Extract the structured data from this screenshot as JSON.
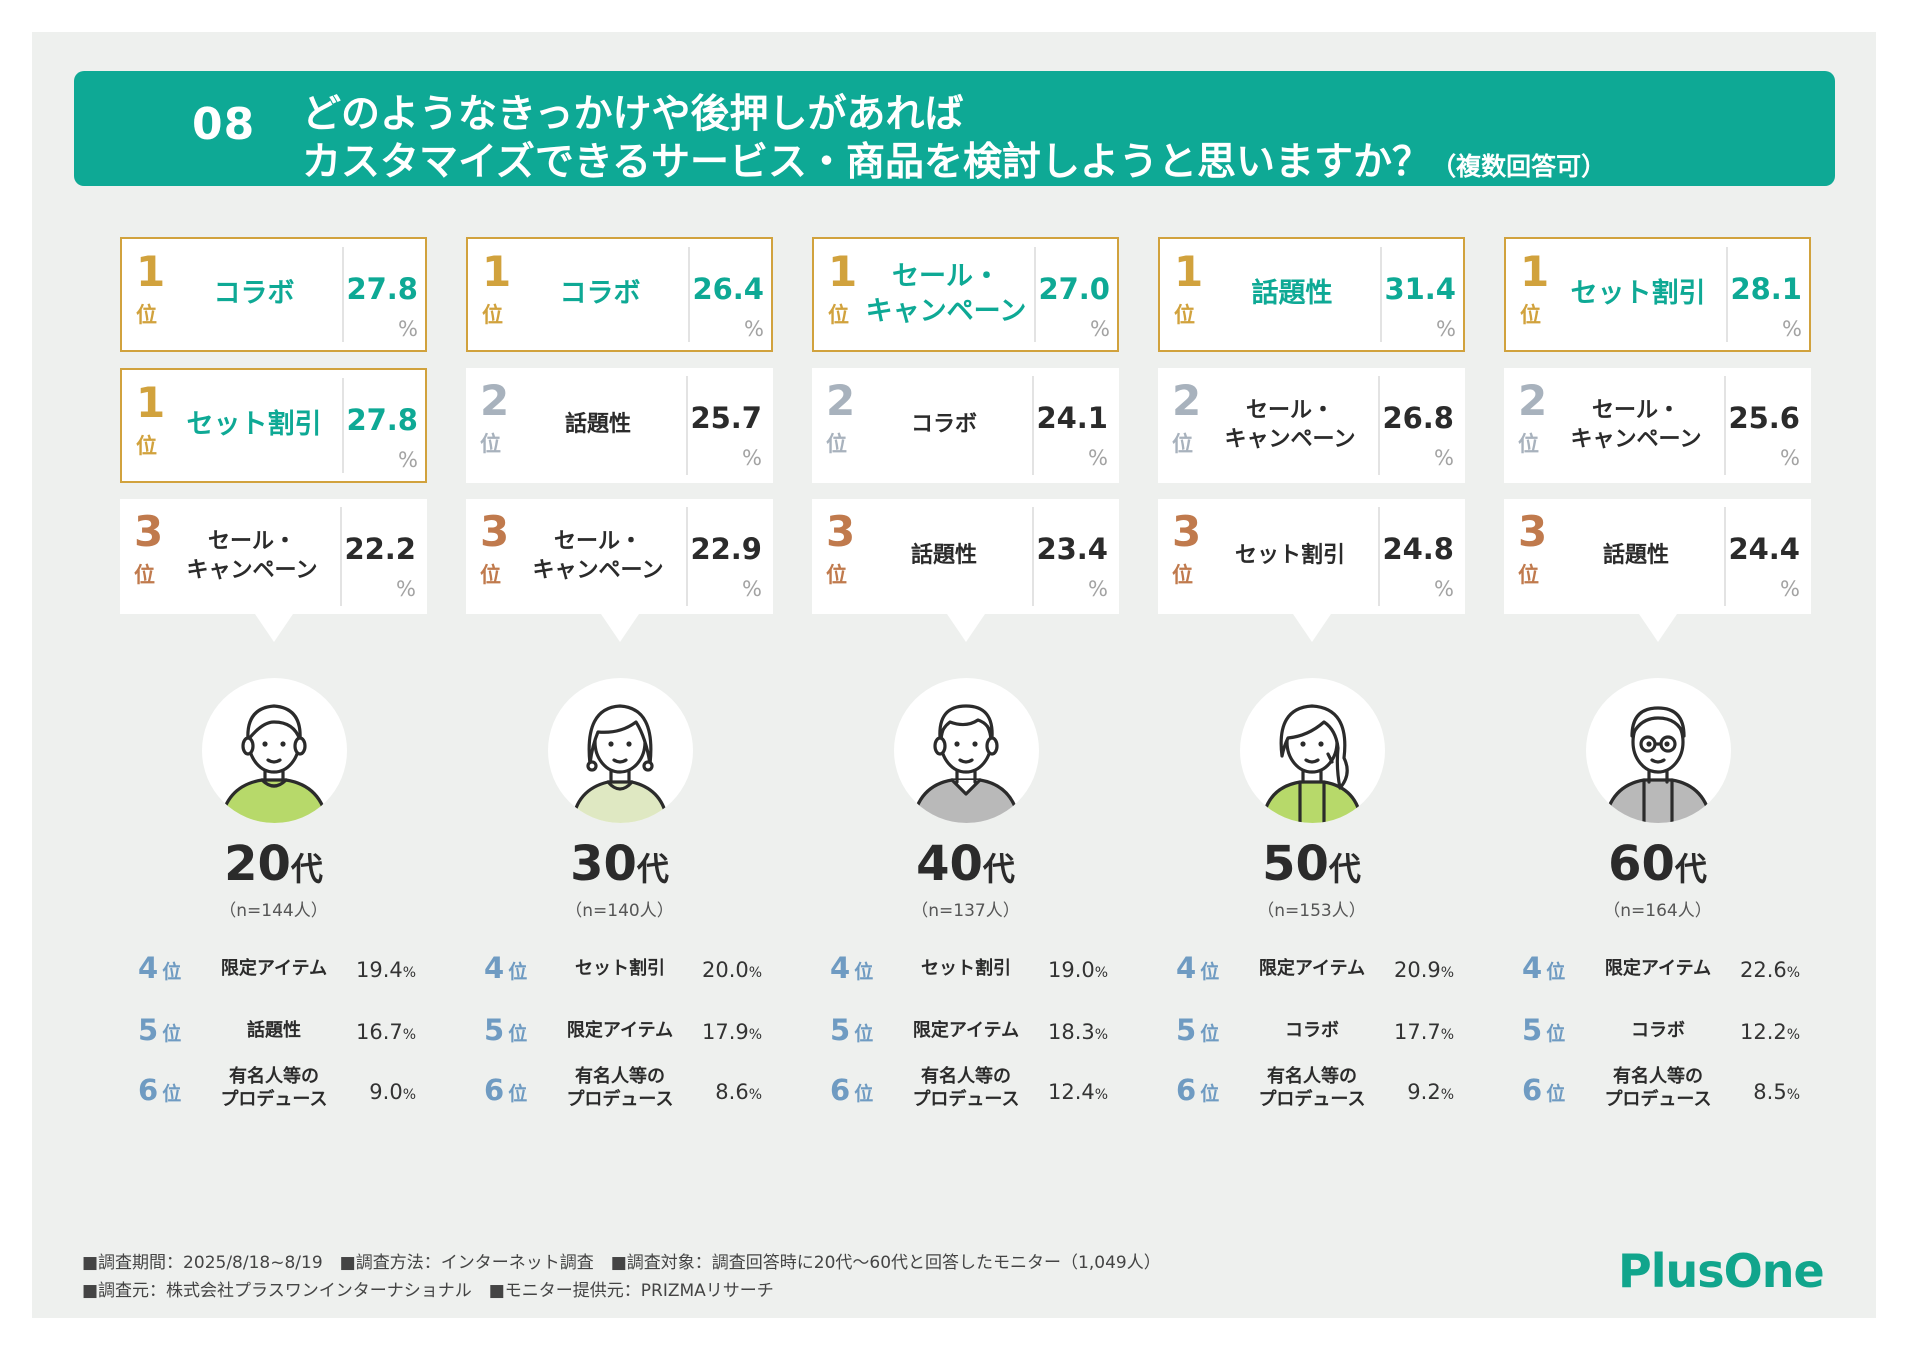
{
  "header": {
    "number": "08",
    "line1": "どのようなきっかけや後押しがあれば",
    "line2": "カスタマイズできるサービス・商品を検討しようと思いますか？",
    "note": "（複数回答可）"
  },
  "colors": {
    "teal": "#0ea995",
    "gold": "#d1a23d",
    "silver": "#a8b2bd",
    "bronze": "#c07a4d",
    "lower_rank": "#6f9bc2"
  },
  "rank_suffix": "位",
  "percent_sign": "%",
  "groups": [
    {
      "age": "20",
      "age_suffix": "代",
      "n": "（n=144人）",
      "avatar_icon": "young-man-avatar-icon",
      "top": [
        {
          "rank": "1",
          "label": "コラボ",
          "value": "27.8"
        },
        {
          "rank": "1",
          "label": "セット割引",
          "value": "27.8"
        },
        {
          "rank": "3",
          "label": "セール・\nキャンペーン",
          "value": "22.2"
        }
      ],
      "others": [
        {
          "rank": "4",
          "label": "限定アイテム",
          "value": "19.4"
        },
        {
          "rank": "5",
          "label": "話題性",
          "value": "16.7"
        },
        {
          "rank": "6",
          "label": "有名人等の\nプロデュース",
          "value": "9.0"
        }
      ]
    },
    {
      "age": "30",
      "age_suffix": "代",
      "n": "（n=140人）",
      "avatar_icon": "woman-avatar-icon",
      "top": [
        {
          "rank": "1",
          "label": "コラボ",
          "value": "26.4"
        },
        {
          "rank": "2",
          "label": "話題性",
          "value": "25.7"
        },
        {
          "rank": "3",
          "label": "セール・\nキャンペーン",
          "value": "22.9"
        }
      ],
      "others": [
        {
          "rank": "4",
          "label": "セット割引",
          "value": "20.0"
        },
        {
          "rank": "5",
          "label": "限定アイテム",
          "value": "17.9"
        },
        {
          "rank": "6",
          "label": "有名人等の\nプロデュース",
          "value": "8.6"
        }
      ]
    },
    {
      "age": "40",
      "age_suffix": "代",
      "n": "（n=137人）",
      "avatar_icon": "man-avatar-icon",
      "top": [
        {
          "rank": "1",
          "label": "セール・\nキャンペーン",
          "value": "27.0"
        },
        {
          "rank": "2",
          "label": "コラボ",
          "value": "24.1"
        },
        {
          "rank": "3",
          "label": "話題性",
          "value": "23.4"
        }
      ],
      "others": [
        {
          "rank": "4",
          "label": "セット割引",
          "value": "19.0"
        },
        {
          "rank": "5",
          "label": "限定アイテム",
          "value": "18.3"
        },
        {
          "rank": "6",
          "label": "有名人等の\nプロデュース",
          "value": "12.4"
        }
      ]
    },
    {
      "age": "50",
      "age_suffix": "代",
      "n": "（n=153人）",
      "avatar_icon": "middle-aged-woman-avatar-icon",
      "top": [
        {
          "rank": "1",
          "label": "話題性",
          "value": "31.4"
        },
        {
          "rank": "2",
          "label": "セール・\nキャンペーン",
          "value": "26.8"
        },
        {
          "rank": "3",
          "label": "セット割引",
          "value": "24.8"
        }
      ],
      "others": [
        {
          "rank": "4",
          "label": "限定アイテム",
          "value": "20.9"
        },
        {
          "rank": "5",
          "label": "コラボ",
          "value": "17.7"
        },
        {
          "rank": "6",
          "label": "有名人等の\nプロデュース",
          "value": "9.2"
        }
      ]
    },
    {
      "age": "60",
      "age_suffix": "代",
      "n": "（n=164人）",
      "avatar_icon": "senior-man-with-glasses-avatar-icon",
      "top": [
        {
          "rank": "1",
          "label": "セット割引",
          "value": "28.1"
        },
        {
          "rank": "2",
          "label": "セール・\nキャンペーン",
          "value": "25.6"
        },
        {
          "rank": "3",
          "label": "話題性",
          "value": "24.4"
        }
      ],
      "others": [
        {
          "rank": "4",
          "label": "限定アイテム",
          "value": "22.6"
        },
        {
          "rank": "5",
          "label": "コラボ",
          "value": "12.2"
        },
        {
          "rank": "6",
          "label": "有名人等の\nプロデュース",
          "value": "8.5"
        }
      ]
    }
  ],
  "footer": {
    "line1": "■調査期間：2025/8/18~8/19　■調査方法：インターネット調査　■調査対象：調査回答時に20代〜60代と回答したモニター（1,049人）",
    "line2": "■調査元：株式会社プラスワンインターナショナル　■モニター提供元：PRIZMAリサーチ"
  },
  "logo": "PlusOne"
}
